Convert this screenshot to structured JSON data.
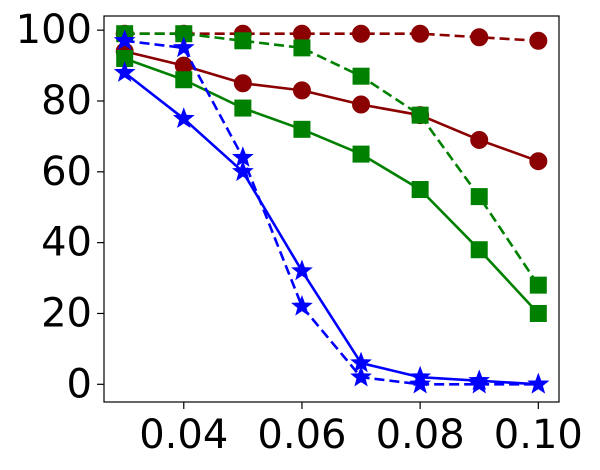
{
  "chart_data": {
    "type": "line",
    "title": "",
    "xlabel": "",
    "ylabel": "",
    "xlim": [
      0.0265,
      0.1035
    ],
    "ylim": [
      -5,
      104
    ],
    "grid": false,
    "legend": "none",
    "x": [
      0.03,
      0.04,
      0.05,
      0.06,
      0.07,
      0.08,
      0.09,
      0.1
    ],
    "x_ticks": [
      0.04,
      0.06,
      0.08,
      0.1
    ],
    "x_tick_labels": [
      "0.04",
      "0.06",
      "0.08",
      "0.10"
    ],
    "y_ticks": [
      0,
      20,
      40,
      60,
      80,
      100
    ],
    "y_tick_labels": [
      "0",
      "20",
      "40",
      "60",
      "80",
      "100"
    ],
    "series": [
      {
        "color": "#8b0000",
        "marker": "circle",
        "line_style": "solid",
        "values": [
          94,
          90,
          85,
          83,
          79,
          76,
          69,
          63
        ]
      },
      {
        "color": "#8b0000",
        "marker": "circle",
        "line_style": "dashed",
        "values": [
          99,
          99,
          99,
          99,
          99,
          99,
          98,
          97
        ]
      },
      {
        "color": "#008000",
        "marker": "square",
        "line_style": "solid",
        "values": [
          92,
          86,
          78,
          72,
          65,
          55,
          38,
          20
        ]
      },
      {
        "color": "#008000",
        "marker": "square",
        "line_style": "dashed",
        "values": [
          99,
          99,
          97,
          95,
          87,
          76,
          53,
          28
        ]
      },
      {
        "color": "#0000ff",
        "marker": "star",
        "line_style": "solid",
        "values": [
          88,
          75,
          60,
          32,
          6,
          2,
          1,
          0
        ]
      },
      {
        "color": "#0000ff",
        "marker": "star",
        "line_style": "dashed",
        "values": [
          97,
          95,
          64,
          22,
          2,
          0,
          0,
          0
        ]
      }
    ]
  }
}
